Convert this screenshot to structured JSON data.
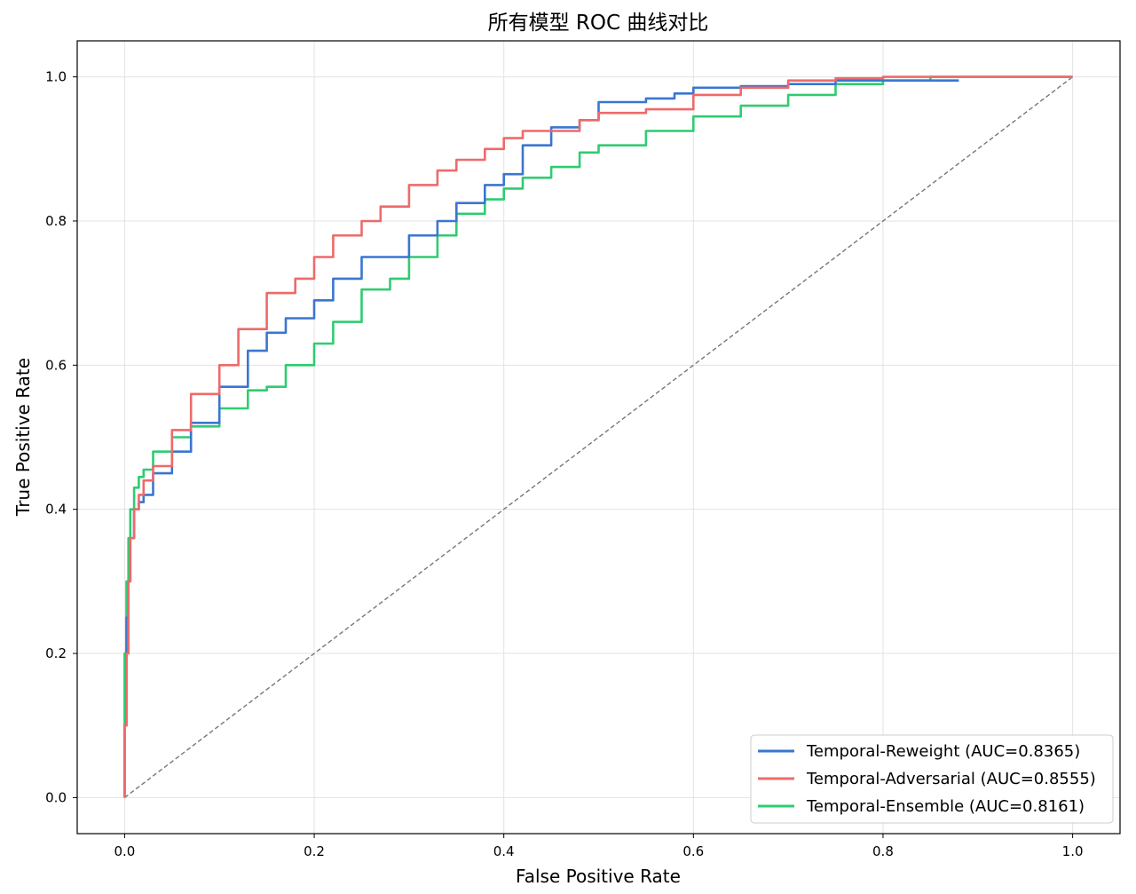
{
  "chart_data": {
    "type": "line",
    "title": "所有模型 ROC 曲线对比",
    "xlabel": "False Positive Rate",
    "ylabel": "True Positive Rate",
    "xlim": [
      -0.05,
      1.05
    ],
    "ylim": [
      -0.05,
      1.05
    ],
    "xticks": [
      "0.0",
      "0.2",
      "0.4",
      "0.6",
      "0.8",
      "1.0"
    ],
    "yticks": [
      "0.0",
      "0.2",
      "0.4",
      "0.6",
      "0.8",
      "1.0"
    ],
    "grid": true,
    "legend_position": "lower right",
    "diagonal": {
      "x": [
        0,
        1
      ],
      "y": [
        0,
        1
      ],
      "color": "#777777",
      "style": "dashed"
    },
    "series": [
      {
        "name": "Temporal-Reweight (AUC=0.8365)",
        "color": "#3a76d0",
        "x": [
          0,
          0.002,
          0.004,
          0.006,
          0.01,
          0.015,
          0.02,
          0.03,
          0.05,
          0.07,
          0.1,
          0.13,
          0.15,
          0.17,
          0.2,
          0.22,
          0.25,
          0.3,
          0.33,
          0.35,
          0.38,
          0.4,
          0.42,
          0.45,
          0.48,
          0.5,
          0.55,
          0.58,
          0.6,
          0.65,
          0.7,
          0.75,
          0.8,
          0.85,
          0.88
        ],
        "y": [
          0,
          0.1,
          0.25,
          0.3,
          0.36,
          0.4,
          0.41,
          0.42,
          0.45,
          0.48,
          0.52,
          0.57,
          0.62,
          0.645,
          0.665,
          0.69,
          0.72,
          0.75,
          0.78,
          0.8,
          0.825,
          0.85,
          0.865,
          0.905,
          0.93,
          0.94,
          0.965,
          0.97,
          0.977,
          0.985,
          0.987,
          0.99,
          0.995,
          0.995,
          0.995
        ]
      },
      {
        "name": "Temporal-Adversarial (AUC=0.8555)",
        "color": "#ee6a6a",
        "x": [
          0,
          0.002,
          0.004,
          0.006,
          0.01,
          0.015,
          0.02,
          0.03,
          0.05,
          0.07,
          0.1,
          0.12,
          0.15,
          0.18,
          0.2,
          0.22,
          0.25,
          0.27,
          0.3,
          0.33,
          0.35,
          0.38,
          0.4,
          0.42,
          0.45,
          0.48,
          0.5,
          0.55,
          0.6,
          0.65,
          0.7,
          0.75,
          0.8,
          0.85,
          0.9,
          1.0
        ],
        "y": [
          0,
          0.1,
          0.2,
          0.3,
          0.36,
          0.4,
          0.42,
          0.44,
          0.46,
          0.51,
          0.56,
          0.6,
          0.65,
          0.7,
          0.72,
          0.75,
          0.78,
          0.8,
          0.82,
          0.85,
          0.87,
          0.885,
          0.9,
          0.915,
          0.925,
          0.925,
          0.94,
          0.95,
          0.955,
          0.975,
          0.985,
          0.995,
          0.998,
          1.0,
          1.0,
          1.0
        ]
      },
      {
        "name": "Temporal-Ensemble (AUC=0.8161)",
        "color": "#2fcc71",
        "x": [
          0,
          0.002,
          0.004,
          0.006,
          0.01,
          0.015,
          0.02,
          0.03,
          0.05,
          0.07,
          0.1,
          0.13,
          0.15,
          0.17,
          0.2,
          0.22,
          0.25,
          0.28,
          0.3,
          0.33,
          0.35,
          0.38,
          0.4,
          0.42,
          0.45,
          0.48,
          0.5,
          0.55,
          0.6,
          0.65,
          0.7,
          0.75,
          0.8,
          0.85,
          0.9,
          1.0
        ],
        "y": [
          0,
          0.2,
          0.3,
          0.36,
          0.4,
          0.43,
          0.445,
          0.455,
          0.48,
          0.5,
          0.515,
          0.54,
          0.565,
          0.57,
          0.6,
          0.63,
          0.66,
          0.705,
          0.72,
          0.75,
          0.78,
          0.81,
          0.83,
          0.845,
          0.86,
          0.875,
          0.895,
          0.905,
          0.925,
          0.945,
          0.96,
          0.975,
          0.99,
          0.995,
          1.0,
          1.0
        ]
      }
    ]
  }
}
